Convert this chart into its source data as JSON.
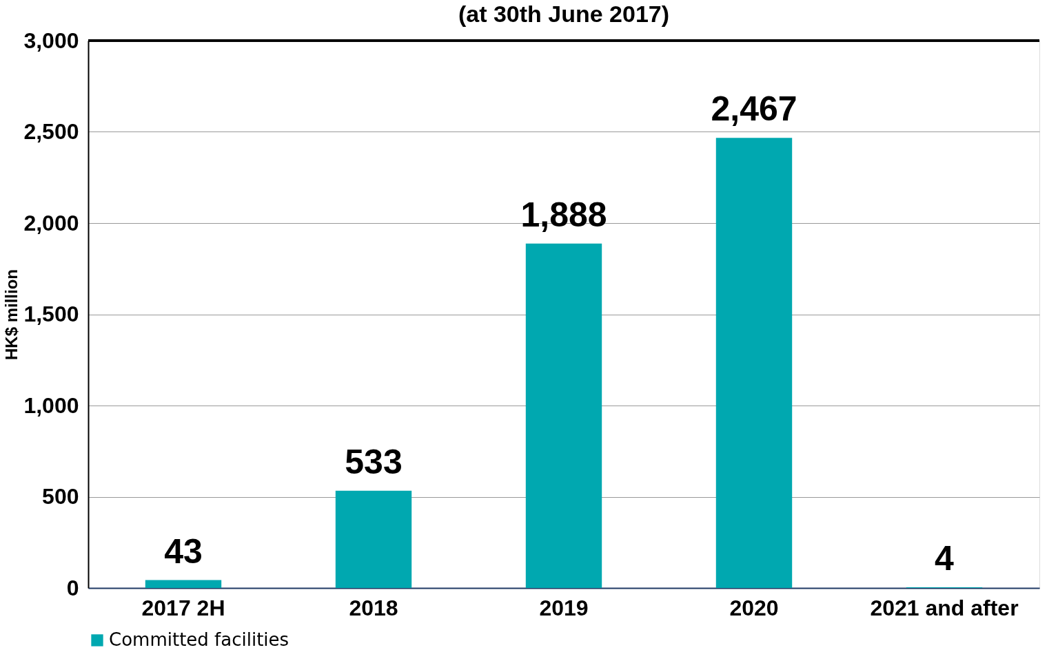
{
  "chart_data": {
    "type": "bar",
    "title": "(at 30th June 2017)",
    "ylabel": "HK$ million",
    "categories": [
      "2017 2H",
      "2018",
      "2019",
      "2020",
      "2021 and after"
    ],
    "series": [
      {
        "name": "Committed facilities",
        "color": "#00a8b0",
        "values": [
          43,
          533,
          1888,
          2467,
          4
        ],
        "value_labels": [
          "43",
          "533",
          "1,888",
          "2,467",
          "4"
        ]
      }
    ],
    "ylim": [
      0,
      3000
    ],
    "yticks": [
      0,
      500,
      {
        "value": 1000,
        "label": "1,000"
      },
      {
        "value": 1500,
        "label": "1,500"
      },
      {
        "value": 2000,
        "label": "2,000"
      },
      {
        "value": 2500,
        "label": "2,500"
      },
      {
        "value": 3000,
        "label": "3,000"
      }
    ],
    "grid": "y",
    "legend": "bottom"
  }
}
